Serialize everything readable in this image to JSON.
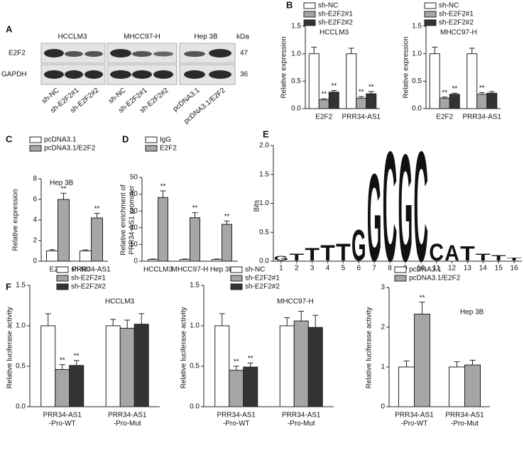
{
  "blot": {
    "panel": "A",
    "groups": [
      "HCCLM3",
      "MHCC97-H",
      "Hep 3B"
    ],
    "unit": "kDa",
    "proteins": [
      "E2F2",
      "GAPDH"
    ],
    "sizes": [
      47,
      36
    ],
    "lanes": [
      "sh-NC",
      "sh-E2F2#1",
      "sh-E2F2#2",
      "sh-NC",
      "sh-E2F2#1",
      "sh-E2F2#2",
      "pcDNA3.1",
      "pcDNA3.1/E2F2"
    ]
  },
  "chart_data": [
    {
      "type": "bar",
      "panel": "B",
      "title": "HCCLM3",
      "ylabel": "Relative expression",
      "categories": [
        "E2F2",
        "PRR34-AS1"
      ],
      "ylim": [
        0,
        1.5
      ],
      "yticks": [
        {
          "value": 0,
          "label": "0.0"
        },
        0.5,
        {
          "value": 1,
          "label": "1.0"
        },
        1.5
      ],
      "series": [
        {
          "name": "sh-NC",
          "color": "#ffffff",
          "values": [
            1.0,
            1.0
          ],
          "errors": [
            0.12,
            0.1
          ]
        },
        {
          "name": "sh-E2F2#1",
          "color": "#a6a6a6",
          "values": [
            0.16,
            0.19
          ],
          "errors": [
            0.02,
            0.03
          ],
          "significance": [
            "**",
            "**"
          ]
        },
        {
          "name": "sh-E2F2#2",
          "color": "#333333",
          "values": [
            0.3,
            0.27
          ],
          "errors": [
            0.03,
            0.04
          ],
          "significance": [
            "**",
            "**"
          ]
        }
      ]
    },
    {
      "type": "bar",
      "title": "MHCC97-H",
      "ylabel": "Relative expression",
      "categories": [
        "E2F2",
        "PRR34-AS1"
      ],
      "ylim": [
        0,
        1.5
      ],
      "yticks": [
        {
          "value": 0,
          "label": "0.0"
        },
        0.5,
        {
          "value": 1,
          "label": "1.0"
        },
        1.5
      ],
      "series": [
        {
          "name": "sh-NC",
          "color": "#ffffff",
          "values": [
            1.0,
            1.0
          ],
          "errors": [
            0.12,
            0.1
          ]
        },
        {
          "name": "sh-E2F2#1",
          "color": "#a6a6a6",
          "values": [
            0.19,
            0.26
          ],
          "errors": [
            0.02,
            0.03
          ],
          "significance": [
            "**",
            "**"
          ]
        },
        {
          "name": "sh-E2F2#2",
          "color": "#333333",
          "values": [
            0.26,
            0.28
          ],
          "errors": [
            0.02,
            0.03
          ],
          "significance": [
            "**",
            null
          ]
        }
      ]
    },
    {
      "type": "bar",
      "panel": "C",
      "title": "Hep 3B",
      "ylabel": "Relative expression",
      "categories": [
        "E2F2",
        "PRR34-AS1"
      ],
      "ylim": [
        0,
        8
      ],
      "yticks": [
        0,
        2,
        4,
        6,
        8
      ],
      "series": [
        {
          "name": "pcDNA3.1",
          "color": "#ffffff",
          "values": [
            1,
            1
          ],
          "errors": [
            0.12,
            0.1
          ]
        },
        {
          "name": "pcDNA3.1/E2F2",
          "color": "#a6a6a6",
          "values": [
            6.0,
            4.2
          ],
          "errors": [
            0.6,
            0.45
          ],
          "significance": [
            "**",
            "**"
          ]
        }
      ]
    },
    {
      "type": "bar",
      "panel": "D",
      "ylabel": [
        "Relative enrichment of",
        "PRR34-AS1 promoter"
      ],
      "categories": [
        "HCCLM3",
        "MHCC97-H",
        "Hep 3B"
      ],
      "ylim": [
        0,
        50
      ],
      "yticks": [
        0,
        10,
        20,
        30,
        40,
        50
      ],
      "series": [
        {
          "name": "IgG",
          "color": "#ffffff",
          "values": [
            1,
            1,
            1
          ],
          "errors": [
            0.3,
            0.3,
            0.3
          ]
        },
        {
          "name": "E2F2",
          "color": "#a6a6a6",
          "values": [
            38,
            26,
            22
          ],
          "errors": [
            4,
            3,
            2
          ],
          "significance": [
            "**",
            "**",
            "**"
          ]
        }
      ]
    },
    {
      "type": "logo",
      "panel": "E",
      "ylabel": "Bits",
      "categories": [
        1,
        2,
        3,
        4,
        5,
        6,
        7,
        8,
        9,
        10,
        11,
        12,
        13,
        14,
        15,
        16
      ],
      "letters": [
        "G",
        "T",
        "T",
        "T",
        "T",
        "G",
        "G",
        "C",
        "G",
        "C",
        "C",
        "A",
        "T",
        "T",
        "T",
        "T"
      ],
      "values": [
        0.08,
        0.12,
        0.22,
        0.28,
        0.3,
        0.55,
        1.55,
        1.95,
        1.9,
        1.95,
        0.3,
        0.28,
        0.25,
        0.12,
        0.1,
        0.05
      ],
      "letter_colors": {
        "G": "#b3b3b3",
        "C": "#333333",
        "T": "#555555",
        "A": "#666666"
      },
      "ylim": [
        0,
        2
      ],
      "yticks": [
        {
          "value": 0,
          "label": "0.0"
        },
        0.5,
        {
          "value": 1,
          "label": "1.0"
        },
        1.5,
        {
          "value": 2,
          "label": "2.0"
        }
      ]
    },
    {
      "type": "bar",
      "panel": "F",
      "title": "HCCLM3",
      "ylabel": "Relative luciferase activity",
      "categories": [
        [
          "PRR34-AS1",
          "-Pro-WT"
        ],
        [
          "PRR34-AS1",
          "-Pro-Mut"
        ]
      ],
      "ylim": [
        0,
        1.5
      ],
      "yticks": [
        {
          "value": 0,
          "label": "0.0"
        },
        0.5,
        {
          "value": 1,
          "label": "1.0"
        },
        1.5
      ],
      "series": [
        {
          "name": "sh-NC",
          "color": "#ffffff",
          "values": [
            1.0,
            1.0
          ],
          "errors": [
            0.15,
            0.08
          ]
        },
        {
          "name": "sh-E2F2#1",
          "color": "#a6a6a6",
          "values": [
            0.46,
            0.97
          ],
          "errors": [
            0.06,
            0.1
          ],
          "significance": [
            "**",
            null
          ]
        },
        {
          "name": "sh-E2F2#2",
          "color": "#333333",
          "values": [
            0.51,
            1.02
          ],
          "errors": [
            0.06,
            0.13
          ],
          "significance": [
            "**",
            null
          ]
        }
      ]
    },
    {
      "type": "bar",
      "title": "MHCC97-H",
      "ylabel": "Relative luciferase activity",
      "categories": [
        [
          "PRR34-AS1",
          "-Pro-WT"
        ],
        [
          "PRR34-AS1",
          "-Pro-Mut"
        ]
      ],
      "ylim": [
        0,
        1.5
      ],
      "yticks": [
        {
          "value": 0,
          "label": "0.0"
        },
        0.5,
        {
          "value": 1,
          "label": "1.0"
        },
        1.5
      ],
      "series": [
        {
          "name": "sh-NC",
          "color": "#ffffff",
          "values": [
            1.0,
            1.0
          ],
          "errors": [
            0.15,
            0.1
          ]
        },
        {
          "name": "sh-E2F2#1",
          "color": "#a6a6a6",
          "values": [
            0.45,
            1.06
          ],
          "errors": [
            0.05,
            0.12
          ],
          "significance": [
            "**",
            null
          ]
        },
        {
          "name": "sh-E2F2#2",
          "color": "#333333",
          "values": [
            0.49,
            0.98
          ],
          "errors": [
            0.05,
            0.15
          ],
          "significance": [
            "**",
            null
          ]
        }
      ]
    },
    {
      "type": "bar",
      "title": "Hep 3B",
      "ylabel": "Relative luciferase activity",
      "categories": [
        [
          "PRR34-AS1",
          "-Pro-WT"
        ],
        [
          "PRR34-AS1",
          "-Pro-Mut"
        ]
      ],
      "ylim": [
        0,
        3
      ],
      "yticks": [
        0,
        1,
        2,
        3
      ],
      "series": [
        {
          "name": "pcDNA3.1",
          "color": "#ffffff",
          "values": [
            1,
            1
          ],
          "errors": [
            0.15,
            0.13
          ]
        },
        {
          "name": "pcDNA3.1/E2F2",
          "color": "#a6a6a6",
          "values": [
            2.33,
            1.05
          ],
          "errors": [
            0.3,
            0.12
          ],
          "significance": [
            "**",
            null
          ]
        }
      ]
    }
  ]
}
